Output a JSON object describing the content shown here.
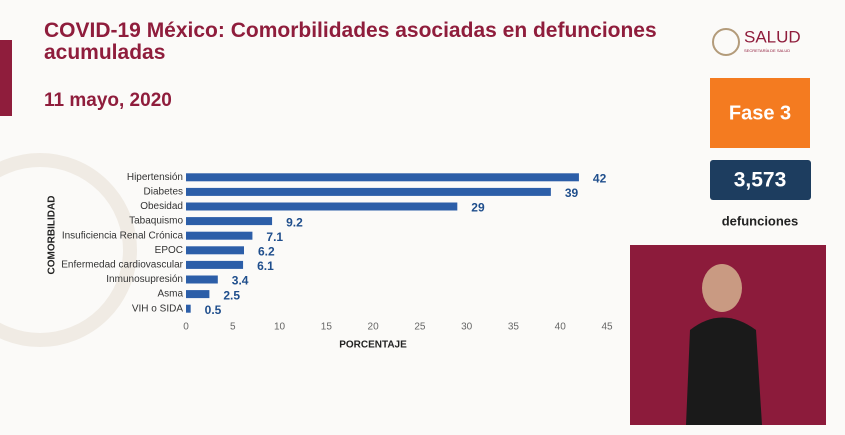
{
  "chart_data": {
    "type": "bar",
    "orientation": "horizontal",
    "title": "COVID-19 México: Comorbilidades asociadas en defunciones acumuladas",
    "subtitle": "11 mayo, 2020",
    "y_label": "COMORBILIDAD",
    "x_label": "PORCENTAJE",
    "categories": [
      "Hipertensión",
      "Diabetes",
      "Obesidad",
      "Tabaquismo",
      "Insuficiencia Renal Crónica",
      "EPOC",
      "Enfermedad cardiovascular",
      "Inmunosupresión",
      "Asma",
      "VIH o SIDA"
    ],
    "values": [
      42,
      39,
      29,
      9.2,
      7.1,
      6.2,
      6.1,
      3.4,
      2.5,
      0.5
    ],
    "color": "#2c5ea8",
    "label_color": "#1f4e8c",
    "xlim": [
      0,
      45
    ],
    "xticks": [
      0,
      5,
      10,
      15,
      20,
      25,
      30,
      35,
      40,
      45
    ],
    "grid": false
  },
  "logo": {
    "name": "SALUD",
    "subtitle": "SECRETARÍA DE SALUD"
  },
  "phase": "Fase 3",
  "deaths": {
    "count": "3,573",
    "label": "defunciones"
  }
}
